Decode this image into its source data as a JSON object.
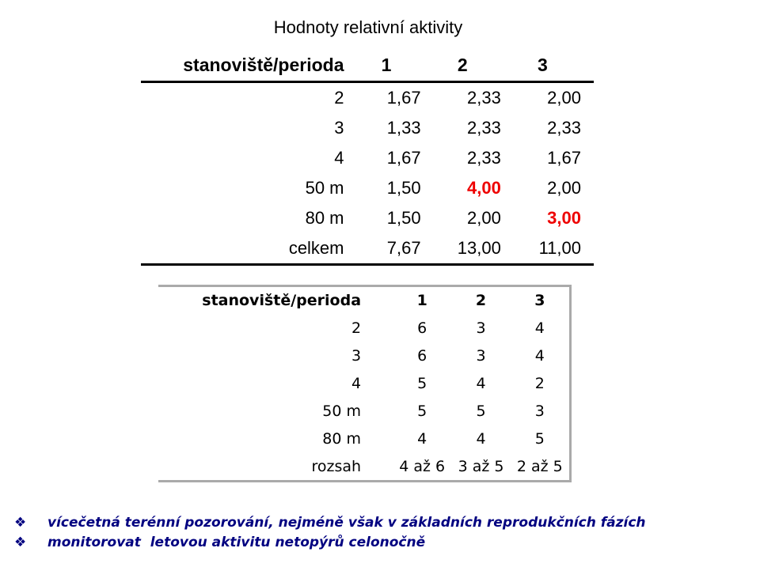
{
  "title": "Hodnoty relativní aktivity",
  "table1": {
    "headers": [
      "stanoviště/perioda",
      "1",
      "2",
      "3"
    ],
    "rows": [
      [
        "2",
        "1,67",
        "2,33",
        "2,00"
      ],
      [
        "3",
        "1,33",
        "2,33",
        "2,33"
      ],
      [
        "4",
        "1,67",
        "2,33",
        "1,67"
      ],
      [
        "50 m",
        "1,50",
        "4,00",
        "2,00"
      ],
      [
        "80 m",
        "1,50",
        "2,00",
        "3,00"
      ],
      [
        "celkem",
        "7,67",
        "13,00",
        "11,00"
      ]
    ],
    "highlight_color": "#ee0000"
  },
  "table2": {
    "headers": [
      "stanoviště/perioda",
      "1",
      "2",
      "3"
    ],
    "rows": [
      [
        "2",
        "6",
        "3",
        "4"
      ],
      [
        "3",
        "6",
        "3",
        "4"
      ],
      [
        "4",
        "5",
        "4",
        "2"
      ],
      [
        "50 m",
        "5",
        "5",
        "3"
      ],
      [
        "80 m",
        "4",
        "4",
        "5"
      ],
      [
        "rozsah",
        "4 až 6",
        "3 až 5",
        "2 až 5"
      ]
    ]
  },
  "bullets": {
    "icon": "diamond-bullet-icon",
    "items": [
      "vícečetná terénní pozorování, nejméně však v základních reprodukčních fázích",
      "monitorovat  letovou aktivitu netopýrů celonočně"
    ]
  }
}
